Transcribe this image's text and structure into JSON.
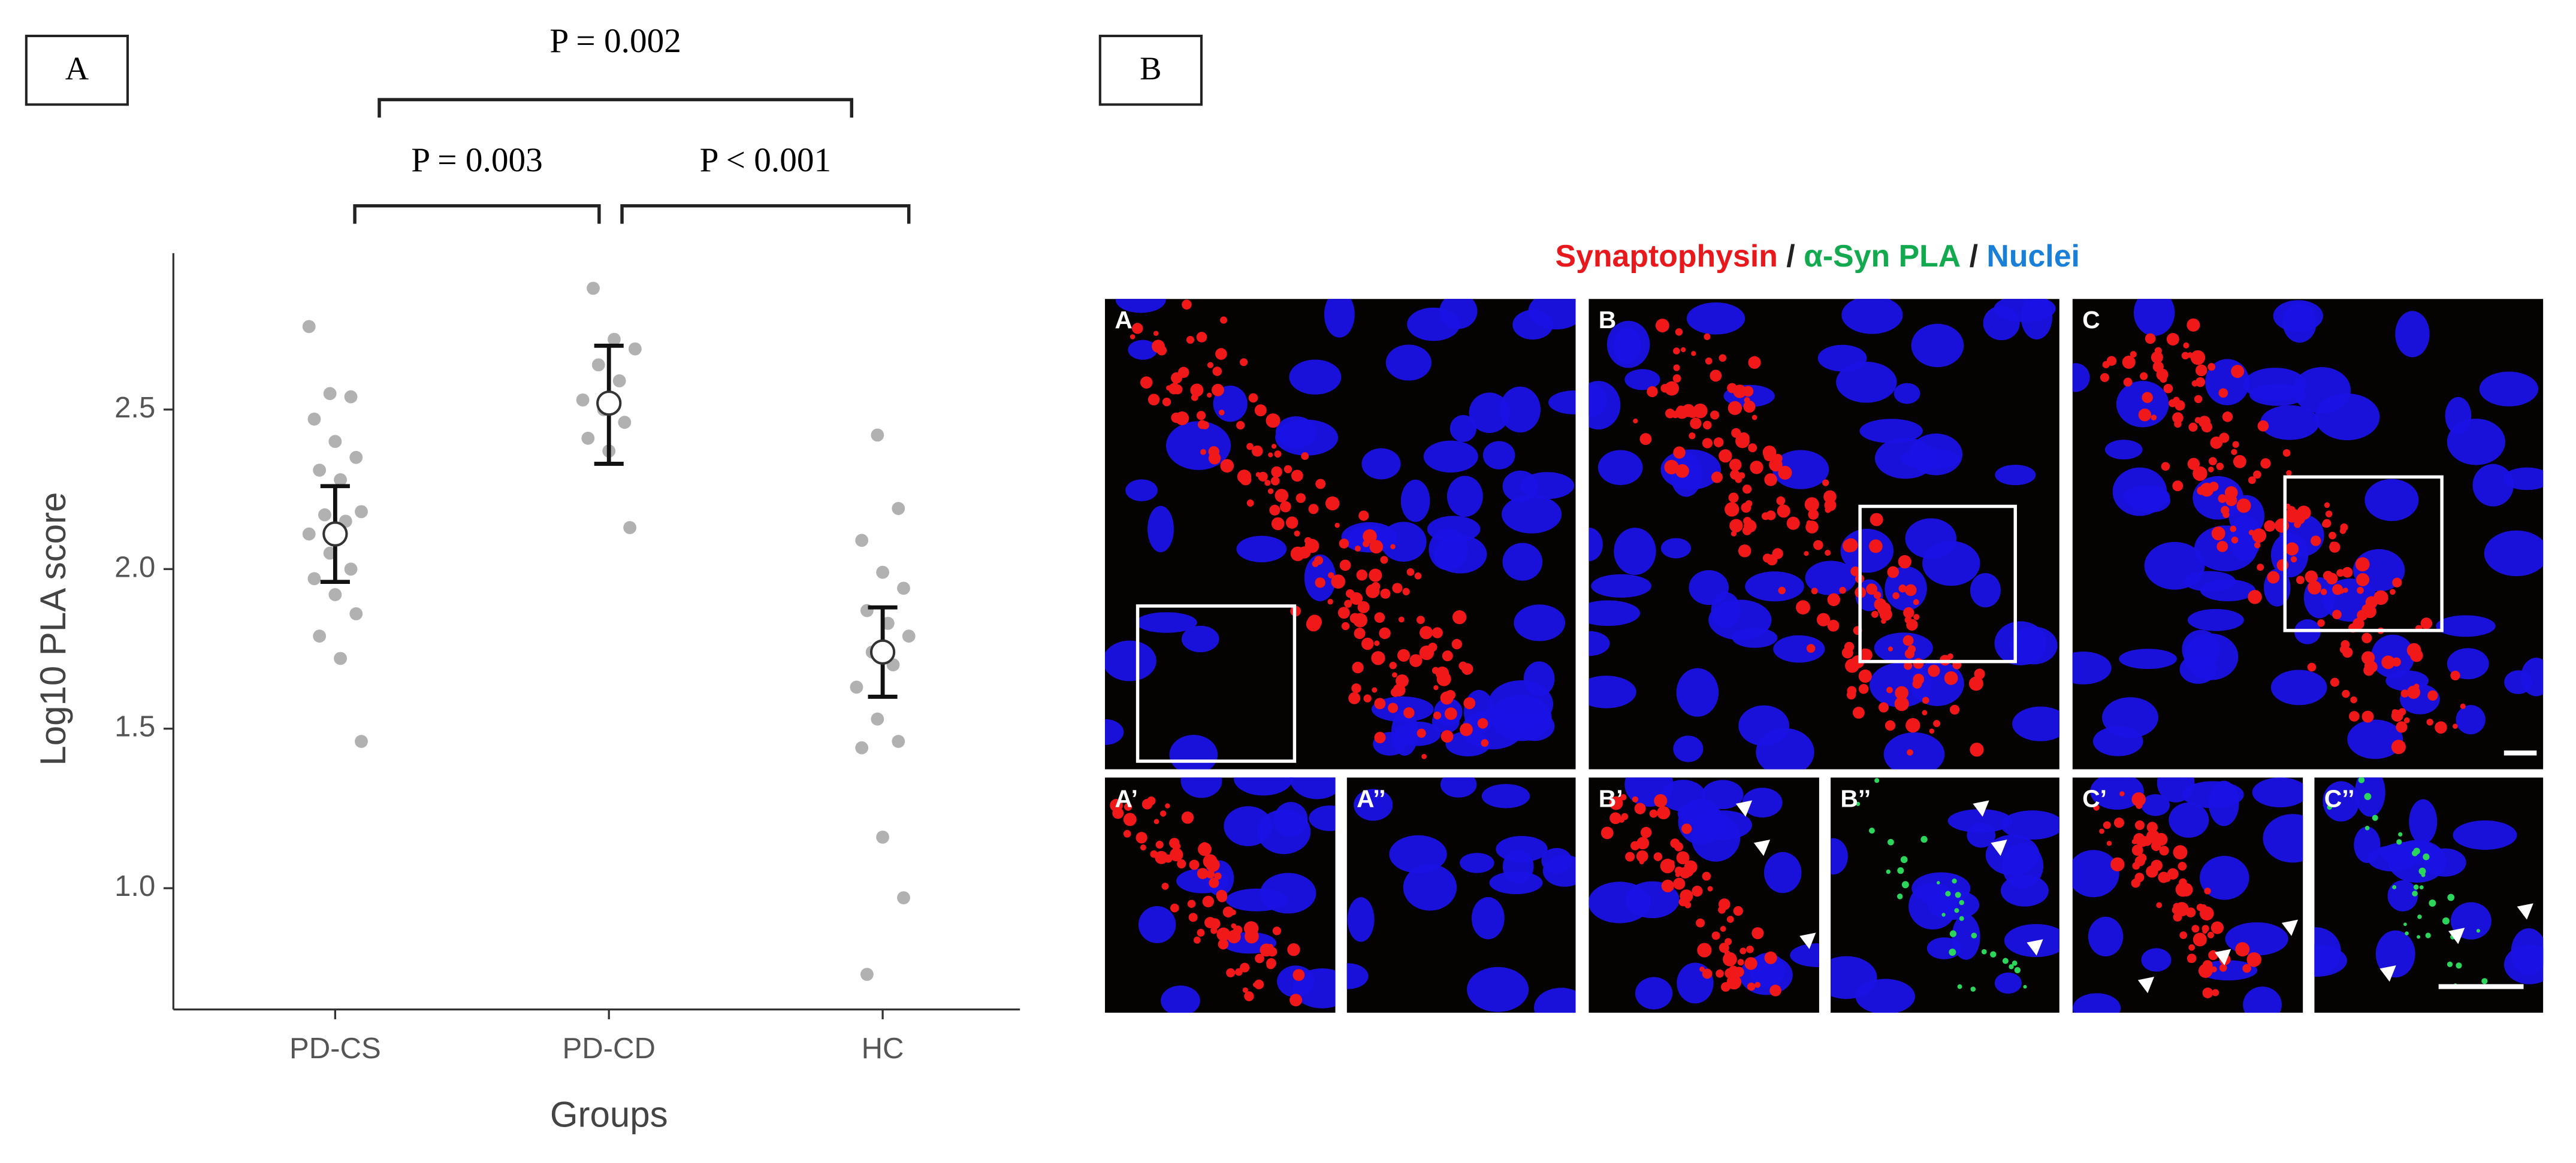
{
  "panel_labels": [
    "A",
    "B"
  ],
  "chart_data": {
    "type": "strip",
    "y_label": "Log10 PLA score",
    "x_label": "Groups",
    "categories": [
      "PD-CS",
      "PD-CD",
      "HC"
    ],
    "points": [
      [
        2.76,
        2.55,
        2.54,
        2.47,
        2.4,
        2.35,
        2.31,
        2.28,
        2.18,
        2.17,
        2.15,
        2.11,
        2.05,
        2.0,
        1.97,
        1.92,
        1.86,
        1.79,
        1.72,
        1.46
      ],
      [
        2.88,
        2.72,
        2.69,
        2.64,
        2.59,
        2.53,
        2.5,
        2.46,
        2.41,
        2.37,
        2.13
      ],
      [
        2.42,
        2.19,
        2.09,
        1.99,
        1.94,
        1.87,
        1.83,
        1.79,
        1.74,
        1.7,
        1.63,
        1.53,
        1.46,
        1.44,
        1.16,
        0.97,
        0.73
      ]
    ],
    "point_color": "#9e9e9e",
    "mean": [
      2.11,
      2.52,
      1.74
    ],
    "ci": [
      [
        1.96,
        2.26
      ],
      [
        2.33,
        2.7
      ],
      [
        1.6,
        1.88
      ]
    ],
    "ylim": [
      0.62,
      2.99
    ],
    "yticks": [
      {
        "value": 1,
        "label": "1.0"
      },
      1.5,
      {
        "value": 2,
        "label": "2.0"
      },
      2.5
    ],
    "annotations": [
      "P = 0.003",
      "P < 0.001",
      "P = 0.002"
    ]
  },
  "panel_b": {
    "legend": [
      {
        "text": "Synaptophysin",
        "color": "#e8191d"
      },
      {
        "text": " / ",
        "color": "#222222"
      },
      {
        "text": "α-Syn PLA",
        "color": "#12a94f"
      },
      {
        "text": " / ",
        "color": "#222222"
      },
      {
        "text": "Nuclei",
        "color": "#1a7fd8"
      }
    ],
    "images": [
      "A",
      "B",
      "C",
      "A’",
      "A’’",
      "B’",
      "B’’",
      "C’",
      "C’’"
    ]
  }
}
